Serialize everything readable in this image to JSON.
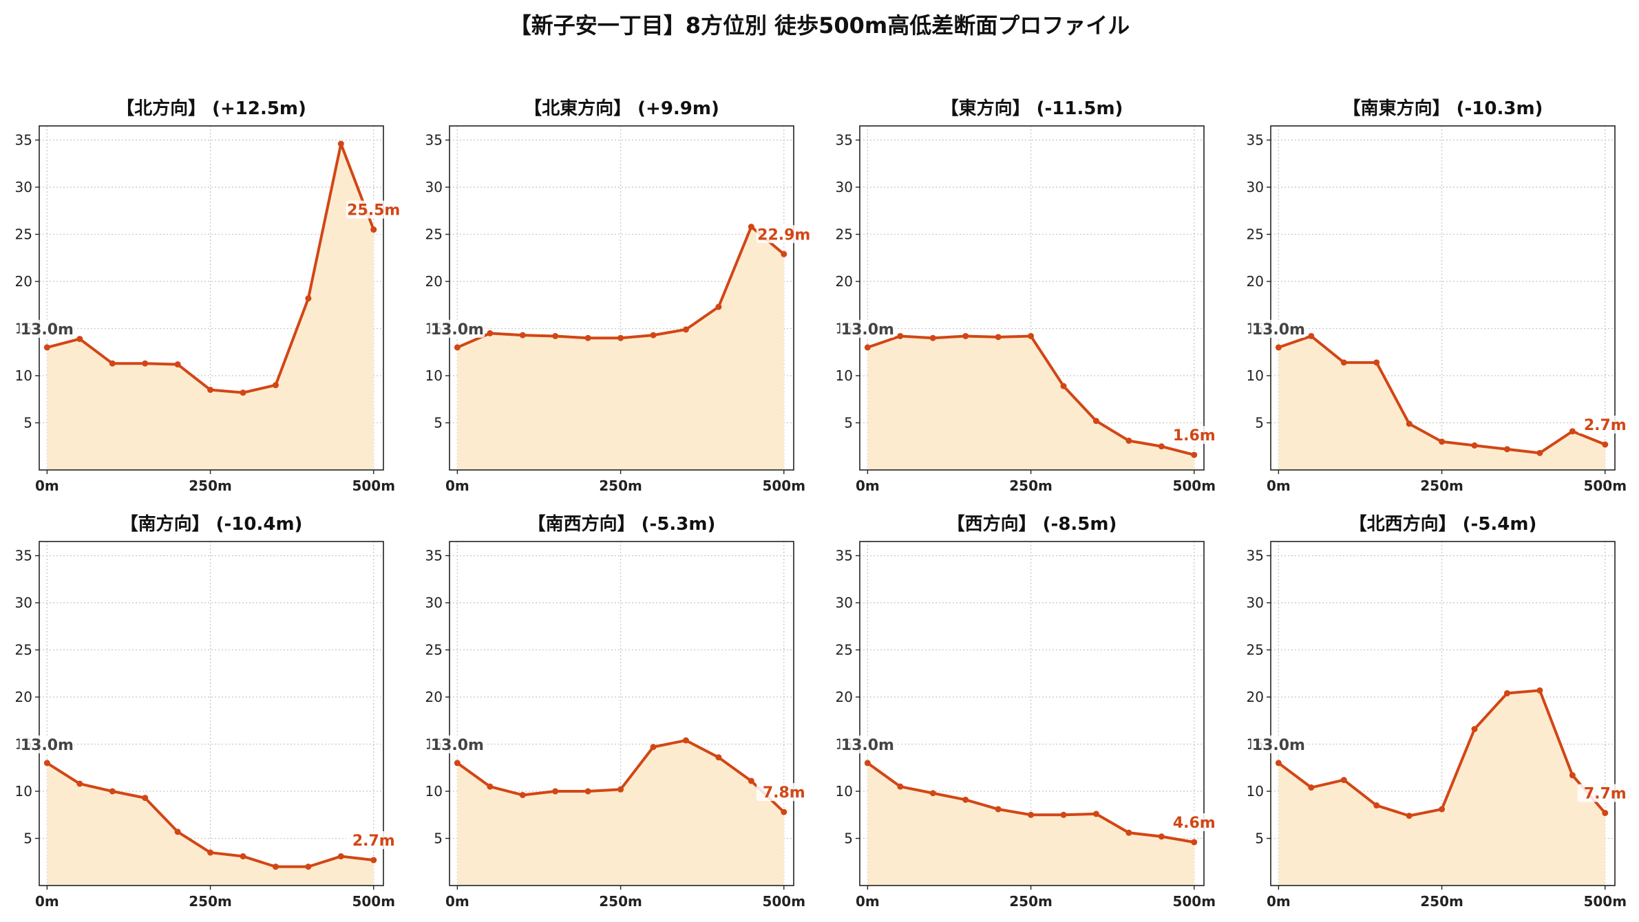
{
  "title": "【新子安一丁目】8方位別 徒歩500m高低差断面プロファイル",
  "colors": {
    "line": "#d24615",
    "fill": "#fdebcf",
    "grid": "#c8c8c8",
    "start_label": "#444444",
    "end_label": "#d24615"
  },
  "chart_data": [
    {
      "type": "area",
      "title": "【北方向】 (+12.5m)",
      "x": [
        0,
        50,
        100,
        150,
        200,
        250,
        300,
        350,
        400,
        450,
        500
      ],
      "values": [
        13.0,
        13.9,
        11.3,
        11.3,
        11.2,
        8.5,
        8.2,
        9.0,
        18.2,
        34.6,
        25.5
      ],
      "xticks": [
        "0m",
        "250m",
        "500m"
      ],
      "yticks": [
        "5",
        "10",
        "15",
        "20",
        "25",
        "30",
        "35"
      ],
      "ylim": [
        0,
        36.5
      ],
      "start_label": "13.0m",
      "end_label": "25.5m",
      "grid": true
    },
    {
      "type": "area",
      "title": "【北東方向】 (+9.9m)",
      "x": [
        0,
        50,
        100,
        150,
        200,
        250,
        300,
        350,
        400,
        450,
        500
      ],
      "values": [
        13.0,
        14.5,
        14.3,
        14.2,
        14.0,
        14.0,
        14.3,
        14.9,
        17.3,
        25.8,
        22.9
      ],
      "xticks": [
        "0m",
        "250m",
        "500m"
      ],
      "yticks": [
        "5",
        "10",
        "15",
        "20",
        "25",
        "30",
        "35"
      ],
      "ylim": [
        0,
        36.5
      ],
      "start_label": "13.0m",
      "end_label": "22.9m",
      "grid": true
    },
    {
      "type": "area",
      "title": "【東方向】 (-11.5m)",
      "x": [
        0,
        50,
        100,
        150,
        200,
        250,
        300,
        350,
        400,
        450,
        500
      ],
      "values": [
        13.0,
        14.2,
        14.0,
        14.2,
        14.1,
        14.2,
        8.9,
        5.2,
        3.1,
        2.5,
        1.6
      ],
      "xticks": [
        "0m",
        "250m",
        "500m"
      ],
      "yticks": [
        "5",
        "10",
        "15",
        "20",
        "25",
        "30",
        "35"
      ],
      "ylim": [
        0,
        36.5
      ],
      "start_label": "13.0m",
      "end_label": "1.6m",
      "grid": true
    },
    {
      "type": "area",
      "title": "【南東方向】 (-10.3m)",
      "x": [
        0,
        50,
        100,
        150,
        200,
        250,
        300,
        350,
        400,
        450,
        500
      ],
      "values": [
        13.0,
        14.2,
        11.4,
        11.4,
        4.9,
        3.0,
        2.6,
        2.2,
        1.8,
        4.1,
        2.7
      ],
      "xticks": [
        "0m",
        "250m",
        "500m"
      ],
      "yticks": [
        "5",
        "10",
        "15",
        "20",
        "25",
        "30",
        "35"
      ],
      "ylim": [
        0,
        36.5
      ],
      "start_label": "13.0m",
      "end_label": "2.7m",
      "grid": true
    },
    {
      "type": "area",
      "title": "【南方向】 (-10.4m)",
      "x": [
        0,
        50,
        100,
        150,
        200,
        250,
        300,
        350,
        400,
        450,
        500
      ],
      "values": [
        13.0,
        10.8,
        10.0,
        9.3,
        5.7,
        3.5,
        3.1,
        2.0,
        2.0,
        3.1,
        2.7
      ],
      "xticks": [
        "0m",
        "250m",
        "500m"
      ],
      "yticks": [
        "5",
        "10",
        "15",
        "20",
        "25",
        "30",
        "35"
      ],
      "ylim": [
        0,
        36.5
      ],
      "start_label": "13.0m",
      "end_label": "2.7m",
      "grid": true
    },
    {
      "type": "area",
      "title": "【南西方向】 (-5.3m)",
      "x": [
        0,
        50,
        100,
        150,
        200,
        250,
        300,
        350,
        400,
        450,
        500
      ],
      "values": [
        13.0,
        10.5,
        9.6,
        10.0,
        10.0,
        10.2,
        14.7,
        15.4,
        13.6,
        11.1,
        7.8
      ],
      "xticks": [
        "0m",
        "250m",
        "500m"
      ],
      "yticks": [
        "5",
        "10",
        "15",
        "20",
        "25",
        "30",
        "35"
      ],
      "ylim": [
        0,
        36.5
      ],
      "start_label": "13.0m",
      "end_label": "7.8m",
      "grid": true
    },
    {
      "type": "area",
      "title": "【西方向】 (-8.5m)",
      "x": [
        0,
        50,
        100,
        150,
        200,
        250,
        300,
        350,
        400,
        450,
        500
      ],
      "values": [
        13.0,
        10.5,
        9.8,
        9.1,
        8.1,
        7.5,
        7.5,
        7.6,
        5.6,
        5.2,
        4.6
      ],
      "xticks": [
        "0m",
        "250m",
        "500m"
      ],
      "yticks": [
        "5",
        "10",
        "15",
        "20",
        "25",
        "30",
        "35"
      ],
      "ylim": [
        0,
        36.5
      ],
      "start_label": "13.0m",
      "end_label": "4.6m",
      "grid": true
    },
    {
      "type": "area",
      "title": "【北西方向】 (-5.4m)",
      "x": [
        0,
        50,
        100,
        150,
        200,
        250,
        300,
        350,
        400,
        450,
        500
      ],
      "values": [
        13.0,
        10.4,
        11.2,
        8.5,
        7.4,
        8.1,
        16.6,
        20.4,
        20.7,
        11.7,
        7.7
      ],
      "xticks": [
        "0m",
        "250m",
        "500m"
      ],
      "yticks": [
        "5",
        "10",
        "15",
        "20",
        "25",
        "30",
        "35"
      ],
      "ylim": [
        0,
        36.5
      ],
      "start_label": "13.0m",
      "end_label": "7.7m",
      "grid": true
    }
  ]
}
